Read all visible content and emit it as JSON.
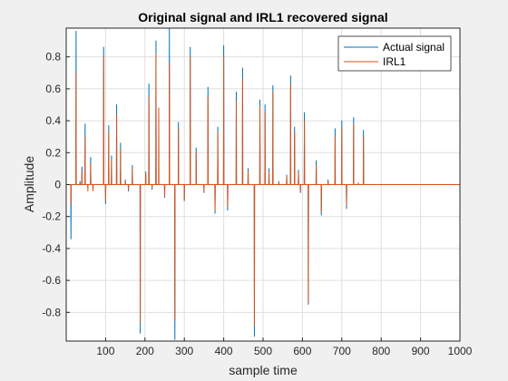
{
  "chart_data": {
    "type": "line",
    "title": "Original signal and IRL1 recovered signal",
    "xlabel": "sample time",
    "ylabel": "Amplitude",
    "xlim": [
      0,
      1000
    ],
    "ylim": [
      -0.98,
      0.98
    ],
    "x_ticks": [
      100,
      200,
      300,
      400,
      500,
      600,
      700,
      800,
      900,
      1000
    ],
    "y_ticks": [
      -0.8,
      -0.6,
      -0.4,
      -0.2,
      0,
      0.2,
      0.4,
      0.6,
      0.8
    ],
    "grid": true,
    "legend_location": "top-right",
    "series": [
      {
        "name": "Actual signal",
        "color": "#0072bd",
        "x": [
          12,
          25,
          35,
          40,
          48,
          55,
          62,
          68,
          78,
          95,
          100,
          108,
          115,
          128,
          138,
          150,
          158,
          168,
          188,
          202,
          210,
          218,
          228,
          250,
          262,
          276,
          285,
          300,
          315,
          330,
          350,
          360,
          378,
          385,
          400,
          410,
          432,
          448,
          462,
          478,
          492,
          505,
          515,
          525,
          540,
          560,
          570,
          580,
          590,
          595,
          605,
          615,
          622,
          635,
          648,
          665,
          683,
          700,
          712,
          730,
          742,
          755,
          768,
          785,
          798,
          808,
          820,
          830,
          840,
          845,
          875,
          885,
          905
        ],
        "values": [
          -0.34,
          0.96,
          0.02,
          0.11,
          0.38,
          -0.02,
          0.17,
          -0.03,
          0.0,
          0.86,
          -0.12,
          0.37,
          0.18,
          0.5,
          0.26,
          0.03,
          -0.04,
          0.12,
          -0.93,
          0.08,
          0.63,
          -0.03,
          0.9,
          -0.08,
          0.98,
          -0.97,
          0.39,
          -0.1,
          0.86,
          0.23,
          -0.05,
          0.61,
          -0.18,
          0.36,
          0.87,
          -0.16,
          0.58,
          0.73,
          0.1,
          -0.95,
          0.53,
          0.5,
          0.1,
          0.62,
          0.02,
          0.06,
          0.68,
          0.36,
          0.09,
          -0.05,
          0.45,
          -0.75,
          0.0,
          0.15,
          -0.19,
          0.03,
          0.35,
          0.4,
          -0.15,
          0.42,
          0.01,
          0.34,
          0.0,
          0.0,
          0.0,
          0.0,
          0.0,
          0.0,
          0.0,
          0.0,
          0.0,
          0.0,
          0.0
        ]
      },
      {
        "name": "IRL1",
        "color": "#d95319",
        "x": [
          12,
          25,
          40,
          48,
          55,
          62,
          68,
          95,
          100,
          108,
          115,
          128,
          138,
          150,
          158,
          168,
          188,
          202,
          210,
          218,
          228,
          235,
          250,
          262,
          276,
          285,
          300,
          315,
          330,
          350,
          360,
          378,
          385,
          400,
          410,
          432,
          448,
          462,
          478,
          492,
          505,
          515,
          525,
          540,
          560,
          570,
          580,
          590,
          595,
          605,
          615,
          622,
          635,
          648,
          665,
          683,
          700,
          712,
          730,
          742,
          755,
          768,
          785,
          798
        ],
        "values": [
          -0.12,
          0.7,
          0.08,
          0.3,
          -0.04,
          0.13,
          -0.04,
          0.8,
          -0.1,
          0.33,
          0.15,
          0.44,
          0.22,
          0.02,
          -0.03,
          0.1,
          -0.86,
          0.07,
          0.55,
          -0.02,
          0.82,
          0.48,
          -0.07,
          0.76,
          -0.85,
          0.35,
          -0.1,
          0.8,
          0.2,
          -0.04,
          0.55,
          -0.16,
          0.33,
          0.8,
          -0.14,
          0.52,
          0.66,
          0.08,
          -0.88,
          0.49,
          0.45,
          0.08,
          0.58,
          0.01,
          0.05,
          0.63,
          0.33,
          0.08,
          -0.04,
          0.4,
          -0.74,
          0.0,
          0.12,
          -0.17,
          0.02,
          0.3,
          0.36,
          -0.13,
          0.38,
          0.01,
          0.3,
          0.0,
          0.0,
          0.0
        ]
      }
    ]
  }
}
